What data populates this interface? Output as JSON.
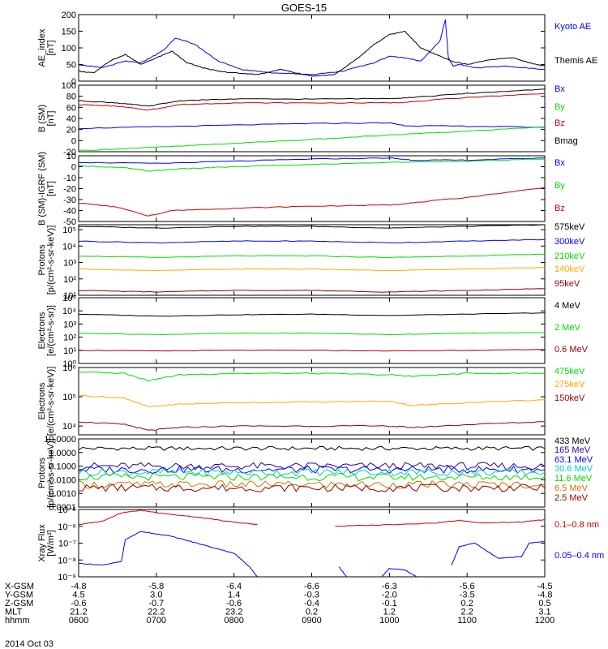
{
  "title": "GOES-15",
  "date": "2014 Oct 03",
  "colors": {
    "black": "#000000",
    "blue": "#0000ff",
    "red": "#cc0000",
    "green": "#00dd00",
    "orange": "#ffaa00",
    "darkred": "#990000",
    "cyan": "#00cccc",
    "darkorange": "#cc7700",
    "purple": "#330099"
  },
  "orbit": {
    "rows": [
      {
        "label": "X-GSM",
        "values": [
          "-4.8",
          "-5.8",
          "-6.4",
          "-6.6",
          "-6.3",
          "-5.6",
          "-4.5"
        ]
      },
      {
        "label": "Y-GSM",
        "values": [
          "4.5",
          "3.0",
          "1.4",
          "-0.3",
          "-2.0",
          "-3.5",
          "-4.8"
        ]
      },
      {
        "label": "Z-GSM",
        "values": [
          "-0.6",
          "-0.7",
          "-0.6",
          "-0.4",
          "-0.1",
          "0.2",
          "0.5"
        ]
      },
      {
        "label": "MLT",
        "values": [
          "21.2",
          "22.2",
          "23.2",
          "0.2",
          "1.2",
          "2.2",
          "3.1"
        ]
      },
      {
        "label": "hhmm",
        "values": [
          "0600",
          "0700",
          "0800",
          "0900",
          "1000",
          "1100",
          "1200"
        ]
      }
    ]
  },
  "chart_data": [
    {
      "type": "line",
      "ylabel": [
        "AE_index",
        "[nT]"
      ],
      "ylim": [
        0,
        200
      ],
      "ticks": [
        "0",
        "50",
        "100",
        "150",
        "200"
      ],
      "series": [
        {
          "name": "Kyoto AE",
          "color": "#0000ff",
          "x": [
            6.0,
            6.3,
            6.6,
            6.8,
            7.0,
            7.1,
            7.25,
            7.5,
            7.8,
            8.1,
            8.5,
            9.0,
            9.4,
            9.8,
            10.0,
            10.2,
            10.4,
            10.65,
            10.72,
            10.76,
            10.82,
            10.9,
            11.1,
            11.5,
            12.0
          ],
          "values": [
            50,
            40,
            60,
            55,
            80,
            95,
            130,
            110,
            60,
            35,
            25,
            20,
            30,
            55,
            75,
            70,
            60,
            120,
            185,
            70,
            45,
            50,
            40,
            45,
            35
          ]
        },
        {
          "name": "Themis AE",
          "color": "#000000",
          "x": [
            6.0,
            6.2,
            6.4,
            6.6,
            6.8,
            7.0,
            7.2,
            7.4,
            7.6,
            7.8,
            8.0,
            8.3,
            8.6,
            9.0,
            9.3,
            9.6,
            9.8,
            10.0,
            10.2,
            10.4,
            10.6,
            10.8,
            11.0,
            11.3,
            11.6,
            11.8,
            12.0
          ],
          "values": [
            30,
            25,
            60,
            80,
            50,
            70,
            90,
            55,
            40,
            30,
            25,
            20,
            35,
            15,
            20,
            70,
            110,
            140,
            150,
            100,
            80,
            60,
            50,
            65,
            70,
            55,
            45
          ]
        }
      ]
    },
    {
      "type": "line",
      "ylabel": [
        "B (SM)",
        "[nT]"
      ],
      "ylim": [
        -20,
        100
      ],
      "ticks": [
        "-20",
        "0",
        "20",
        "40",
        "60",
        "80",
        "100"
      ],
      "series": [
        {
          "name": "Bx",
          "color": "#0000ff",
          "x": [
            6.0,
            7.0,
            8.0,
            9.0,
            10.0,
            10.2,
            11.0,
            12.0
          ],
          "values": [
            22,
            25,
            28,
            31,
            32,
            27,
            26,
            24
          ]
        },
        {
          "name": "By",
          "color": "#00dd00",
          "x": [
            6.0,
            7.0,
            8.0,
            9.0,
            10.0,
            11.0,
            12.0
          ],
          "values": [
            -18,
            -12,
            -5,
            2,
            10,
            17,
            25
          ]
        },
        {
          "name": "Bz",
          "color": "#cc0000",
          "x": [
            6.0,
            6.5,
            6.9,
            7.3,
            8.0,
            9.0,
            10.0,
            10.3,
            11.0,
            12.0
          ],
          "values": [
            65,
            62,
            55,
            65,
            68,
            68,
            68,
            70,
            78,
            85
          ]
        },
        {
          "name": "Bmag",
          "color": "#000000",
          "x": [
            6.0,
            6.5,
            6.9,
            7.3,
            8.0,
            9.0,
            10.0,
            10.3,
            11.0,
            12.0
          ],
          "values": [
            72,
            68,
            62,
            72,
            75,
            75,
            76,
            78,
            85,
            93
          ]
        }
      ]
    },
    {
      "type": "line",
      "ylabel": [
        "B (SM)-IGRF (SM)",
        "[nT]"
      ],
      "ylim": [
        -50,
        10
      ],
      "ticks": [
        "-50",
        "-40",
        "-30",
        "-20",
        "-10",
        "0",
        "10"
      ],
      "series": [
        {
          "name": "Bx",
          "color": "#0000ff",
          "x": [
            6.0,
            7.0,
            8.0,
            9.0,
            10.0,
            10.3,
            11.0,
            12.0
          ],
          "values": [
            4,
            3,
            5,
            7,
            8,
            6,
            6,
            8
          ]
        },
        {
          "name": "By",
          "color": "#00dd00",
          "x": [
            6.0,
            6.6,
            6.9,
            7.3,
            8.0,
            9.0,
            10.0,
            11.0,
            12.0
          ],
          "values": [
            1,
            -1,
            -4,
            -2,
            0,
            2,
            4,
            5,
            7
          ]
        },
        {
          "name": "Bz",
          "color": "#cc0000",
          "x": [
            6.0,
            6.5,
            6.9,
            7.2,
            8.0,
            9.0,
            10.0,
            10.3,
            11.0,
            12.0
          ],
          "values": [
            -33,
            -37,
            -45,
            -40,
            -38,
            -36,
            -35,
            -33,
            -28,
            -19
          ]
        }
      ]
    },
    {
      "type": "line",
      "log": true,
      "ylabel": [
        "Protons",
        "[p/(cm²-s-sr-keV)]"
      ],
      "ylim": [
        1,
        5.3
      ],
      "ticks": [
        "10¹",
        "10²",
        "10³",
        "10⁴",
        "10⁵"
      ],
      "series": [
        {
          "name": "575keV",
          "color": "#000000",
          "x": [
            6.0,
            7.0,
            8.0,
            9.0,
            10.0,
            11.0,
            12.0
          ],
          "values": [
            5.2,
            5.1,
            5.2,
            5.2,
            5.1,
            5.2,
            5.3
          ]
        },
        {
          "name": "300keV",
          "color": "#0000ff",
          "x": [
            6.0,
            7.0,
            8.0,
            9.0,
            10.0,
            11.0,
            12.0
          ],
          "values": [
            4.3,
            4.2,
            4.3,
            4.3,
            4.2,
            4.3,
            4.4
          ]
        },
        {
          "name": "210keV",
          "color": "#00dd00",
          "x": [
            6.0,
            7.0,
            8.0,
            9.0,
            10.0,
            11.0,
            12.0
          ],
          "values": [
            3.4,
            3.3,
            3.4,
            3.4,
            3.3,
            3.4,
            3.5
          ]
        },
        {
          "name": "140keV",
          "color": "#ffaa00",
          "x": [
            6.0,
            7.0,
            8.0,
            9.0,
            10.0,
            11.0,
            12.0
          ],
          "values": [
            2.6,
            2.5,
            2.6,
            2.6,
            2.5,
            2.6,
            2.7
          ]
        },
        {
          "name": "95keV",
          "color": "#990000",
          "x": [
            6.0,
            7.0,
            8.0,
            9.0,
            10.0,
            11.0,
            12.0
          ],
          "values": [
            1.3,
            1.2,
            1.3,
            1.3,
            1.2,
            1.3,
            1.4
          ]
        }
      ]
    },
    {
      "type": "line",
      "log": true,
      "ylabel": [
        "Electrons",
        "[e/(cm²-s-sr)]"
      ],
      "ylim": [
        0,
        5
      ],
      "ticks": [
        "10⁰",
        "10¹",
        "10²",
        "10³",
        "10⁴",
        "10⁵"
      ],
      "series": [
        {
          "name": "4 MeV",
          "color": "#000000",
          "x": [
            6.0,
            7.0,
            8.0,
            9.0,
            10.0,
            11.0,
            12.0
          ],
          "values": [
            3.75,
            3.6,
            3.7,
            3.75,
            3.65,
            3.75,
            3.85
          ]
        },
        {
          "name": "2 MeV",
          "color": "#00dd00",
          "x": [
            6.0,
            7.0,
            8.0,
            9.0,
            10.0,
            11.0,
            12.0
          ],
          "values": [
            2.3,
            2.2,
            2.3,
            2.3,
            2.2,
            2.3,
            2.35
          ]
        },
        {
          "name": "0.6 MeV",
          "color": "#990000",
          "x": [
            6.0,
            7.0,
            8.0,
            9.0,
            10.0,
            11.0,
            12.0
          ],
          "values": [
            1.0,
            0.95,
            1.0,
            1.0,
            0.95,
            1.0,
            1.05
          ]
        }
      ]
    },
    {
      "type": "line",
      "log": true,
      "ylabel": [
        "Electrons",
        "[e/(cm²-s-sr-keV)]"
      ],
      "ylim": [
        3.7,
        6.0
      ],
      "ticks": [
        "10⁴",
        "10⁵",
        "10⁶"
      ],
      "series": [
        {
          "name": "475keV",
          "color": "#00dd00",
          "x": [
            6.0,
            6.6,
            6.9,
            7.3,
            8.0,
            9.0,
            10.0,
            10.3,
            11.0,
            12.0
          ],
          "values": [
            5.85,
            5.8,
            5.55,
            5.75,
            5.8,
            5.8,
            5.75,
            5.7,
            5.8,
            5.8
          ]
        },
        {
          "name": "275keV",
          "color": "#ffaa00",
          "x": [
            6.0,
            6.6,
            6.9,
            7.3,
            8.0,
            9.0,
            10.0,
            10.3,
            11.0,
            12.0
          ],
          "values": [
            5.05,
            4.95,
            4.65,
            4.75,
            4.8,
            4.82,
            4.85,
            4.7,
            4.8,
            4.9
          ]
        },
        {
          "name": "150keV",
          "color": "#990000",
          "x": [
            6.0,
            6.6,
            6.9,
            7.3,
            8.0,
            9.0,
            10.0,
            10.3,
            11.0,
            12.0
          ],
          "values": [
            4.15,
            4.05,
            3.85,
            3.95,
            4.0,
            4.0,
            4.0,
            3.95,
            4.05,
            4.15
          ]
        }
      ]
    },
    {
      "type": "line",
      "log": true,
      "ylabel": [
        "Protons",
        "[p/(cm²-s-sr-keV)]"
      ],
      "ylim": [
        -4,
        1
      ],
      "ticks": [
        "0.0001",
        "0.0010",
        "0.0100",
        "0.1000",
        "1.0000",
        "10.0000"
      ],
      "series": [
        {
          "name": "433 MeV",
          "color": "#000000",
          "x": [
            6.0,
            12.0
          ],
          "values": [
            0.3,
            0.3
          ]
        },
        {
          "name": "165 MeV",
          "color": "#330099",
          "x": [
            6.0,
            12.0
          ],
          "values": [
            -1.0,
            -1.0
          ]
        },
        {
          "name": "63.1 MeV",
          "color": "#0000ff",
          "x": [
            6.0,
            12.0
          ],
          "values": [
            -1.25,
            -1.25
          ]
        },
        {
          "name": "30.6 MeV",
          "color": "#00cccc",
          "x": [
            6.0,
            12.0
          ],
          "values": [
            -1.45,
            -1.45
          ]
        },
        {
          "name": "11.6 MeV",
          "color": "#00dd00",
          "x": [
            6.0,
            12.0
          ],
          "values": [
            -1.8,
            -1.8
          ]
        },
        {
          "name": "6.5 MeV",
          "color": "#cc7700",
          "x": [
            6.0,
            12.0
          ],
          "values": [
            -2.35,
            -2.35
          ]
        },
        {
          "name": "2.5 MeV",
          "color": "#990000",
          "x": [
            6.0,
            12.0
          ],
          "values": [
            -2.6,
            -2.6
          ]
        }
      ]
    },
    {
      "type": "line",
      "log": true,
      "ylabel": [
        "Xray Flux",
        "[W/m²]"
      ],
      "ylim": [
        -9,
        -5
      ],
      "ticks": [
        "10⁻⁹",
        "10⁻⁸",
        "10⁻⁷",
        "10⁻⁶",
        "10⁻⁵"
      ],
      "series": [
        {
          "name": "0.1–0.8 nm",
          "color": "#cc0000",
          "x": [
            6.0,
            6.3,
            6.55,
            6.8,
            7.2,
            7.6,
            7.9,
            8.2,
            8.3
          ],
          "values": [
            -5.9,
            -5.7,
            -5.2,
            -5.05,
            -5.3,
            -5.5,
            -5.7,
            -5.85,
            -5.9
          ],
          "x2": [
            9.3,
            10.0,
            10.6,
            10.9,
            11.2,
            11.7,
            12.0
          ],
          "values2": [
            -6.0,
            -5.9,
            -5.8,
            -5.65,
            -5.8,
            -5.75,
            -5.6
          ]
        },
        {
          "name": "0.05–0.4 nm",
          "color": "#0000ff",
          "x": [
            6.0,
            6.3,
            6.55,
            6.6,
            6.8,
            7.2,
            7.6,
            8.0,
            8.2,
            8.3
          ],
          "values": [
            -8.2,
            -8.3,
            -8.1,
            -6.8,
            -6.3,
            -6.6,
            -7.1,
            -7.6,
            -8.4,
            -9.0
          ],
          "x2": [
            9.35,
            9.45
          ],
          "values2": [
            -8.4,
            -9.0
          ],
          "x3": [
            9.9,
            10.0,
            10.2,
            10.35
          ],
          "values3": [
            -9.0,
            -8.5,
            -8.6,
            -9.0
          ],
          "x4": [
            10.8,
            10.9,
            11.1,
            11.4,
            11.7,
            11.8,
            12.0
          ],
          "values4": [
            -8.3,
            -7.2,
            -7.0,
            -7.9,
            -7.8,
            -7.0,
            -6.9
          ]
        }
      ]
    }
  ]
}
